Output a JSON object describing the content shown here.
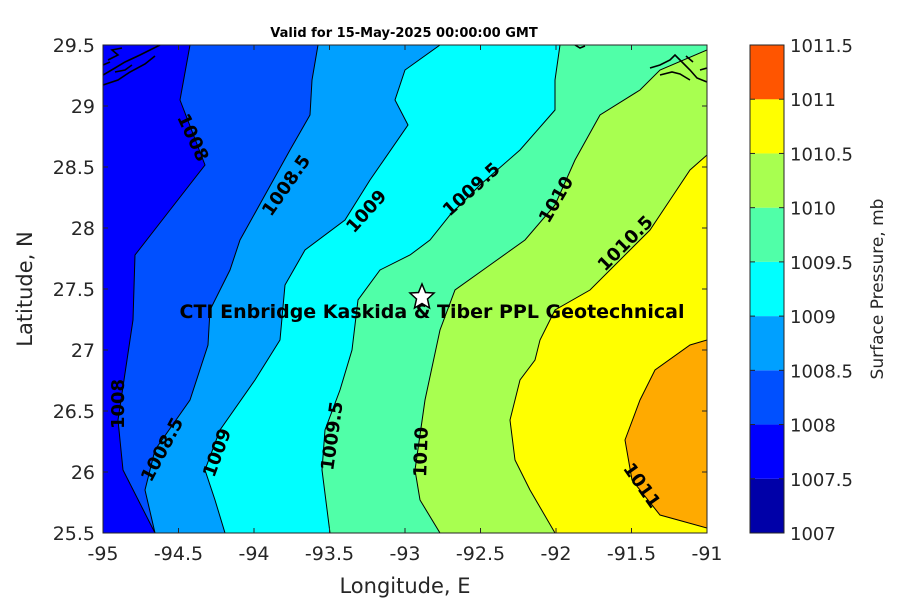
{
  "title": "Valid for 15-May-2025 00:00:00 GMT",
  "xlabel": "Longitude, E",
  "ylabel": "Latitude, N",
  "colorbar_label": "Surface Pressure, mb",
  "x_ticks": [
    "-95",
    "-94.5",
    "-94",
    "-93.5",
    "-93",
    "-92.5",
    "-92",
    "-91.5",
    "-91"
  ],
  "y_ticks": [
    "29.5",
    "29",
    "28.5",
    "28",
    "27.5",
    "27",
    "26.5",
    "26",
    "25.5"
  ],
  "cb_ticks": [
    "1011.5",
    "1011",
    "1010.5",
    "1010",
    "1009.5",
    "1009",
    "1008.5",
    "1008",
    "1007.5",
    "1007"
  ],
  "site_label": "CTI Enbridge  Kaskida & Tiber PPL Geotechnical",
  "site_marker": "star-icon",
  "chart_data": {
    "type": "heatmap",
    "subtype": "filled-contour",
    "title": "Valid for 15-May-2025 00:00:00 GMT",
    "xlabel": "Longitude, E",
    "ylabel": "Latitude, N",
    "xlim": [
      -95,
      -91
    ],
    "ylim": [
      25.5,
      29.5
    ],
    "colorbar": {
      "label": "Surface Pressure, mb",
      "range": [
        1007,
        1011.5
      ],
      "levels": [
        1007,
        1007.5,
        1008,
        1008.5,
        1009,
        1009.5,
        1010,
        1010.5,
        1011,
        1011.5
      ],
      "colors": [
        "#0000a8",
        "#0000ff",
        "#0050ff",
        "#00a0ff",
        "#00ffff",
        "#50ffa8",
        "#a8ff50",
        "#ffff00",
        "#ffaa00",
        "#ff5500"
      ]
    },
    "contour_labels": [
      "1008",
      "1008.5",
      "1009",
      "1009.5",
      "1010",
      "1010.5",
      "1011"
    ],
    "site": {
      "name": "CTI Enbridge  Kaskida & Tiber PPL Geotechnical",
      "lon": -92.85,
      "lat": 27.42
    },
    "grid": false
  }
}
